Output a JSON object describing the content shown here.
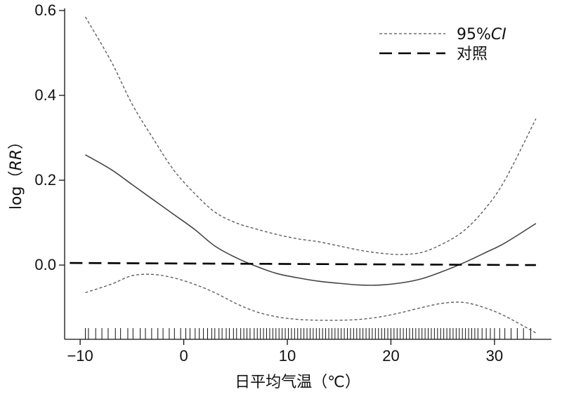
{
  "chart_data": {
    "type": "line",
    "xlabel": "日平均气温（℃）",
    "ylabel_prefix": "log（",
    "ylabel_italic": "RR",
    "ylabel_suffix": "）",
    "xlim": [
      -11.5,
      35.5
    ],
    "ylim": [
      -0.175,
      0.605
    ],
    "x_ticks": [
      -10,
      0,
      10,
      20,
      30
    ],
    "x_tick_labels": [
      "−10",
      "0",
      "10",
      "20",
      "30"
    ],
    "y_ticks": [
      0.0,
      0.2,
      0.4,
      0.6
    ],
    "y_tick_labels": [
      "0.0",
      "0.2",
      "0.4",
      "0.6"
    ],
    "grid": false,
    "legend_position": "top-right",
    "series": [
      {
        "role": "estimate",
        "style": "solid",
        "x": [
          -9.5,
          -7,
          -5,
          -3,
          -1,
          1,
          3,
          5,
          7,
          9,
          11,
          13,
          15,
          17,
          19,
          21,
          23,
          25,
          27,
          29,
          31,
          34
        ],
        "y": [
          0.26,
          0.225,
          0.19,
          0.155,
          0.12,
          0.085,
          0.045,
          0.018,
          -0.003,
          -0.02,
          -0.03,
          -0.038,
          -0.043,
          -0.047,
          -0.047,
          -0.042,
          -0.032,
          -0.015,
          0.005,
          0.028,
          0.052,
          0.098
        ]
      },
      {
        "name": "95%CI",
        "role": "ci-upper",
        "style": "dotted",
        "x": [
          -9.5,
          -7,
          -5,
          -3,
          -1,
          1,
          3,
          5,
          7,
          9,
          11,
          13,
          15,
          17,
          19,
          21,
          23,
          25,
          27,
          29,
          31,
          34
        ],
        "y": [
          0.585,
          0.48,
          0.38,
          0.3,
          0.225,
          0.17,
          0.125,
          0.1,
          0.085,
          0.072,
          0.062,
          0.055,
          0.045,
          0.035,
          0.028,
          0.025,
          0.03,
          0.05,
          0.08,
          0.13,
          0.2,
          0.345
        ]
      },
      {
        "role": "ci-lower",
        "style": "dotted",
        "x": [
          -9.5,
          -7,
          -5,
          -3,
          -1,
          1,
          3,
          5,
          7,
          9,
          11,
          13,
          15,
          17,
          19,
          21,
          23,
          25,
          27,
          29,
          31,
          34
        ],
        "y": [
          -0.065,
          -0.045,
          -0.025,
          -0.022,
          -0.03,
          -0.045,
          -0.065,
          -0.09,
          -0.11,
          -0.122,
          -0.128,
          -0.13,
          -0.13,
          -0.128,
          -0.122,
          -0.112,
          -0.1,
          -0.09,
          -0.088,
          -0.1,
          -0.12,
          -0.16
        ]
      },
      {
        "name": "对照",
        "role": "reference",
        "style": "dashed",
        "x": [
          -11,
          34
        ],
        "y": [
          0.005,
          0.0
        ]
      }
    ],
    "legend": [
      {
        "label_prefix": "95%",
        "label_italic": "CI",
        "style": "dotted"
      },
      {
        "label_prefix": "对照",
        "label_italic": "",
        "style": "dashed"
      }
    ],
    "rug_x": [
      -9.5,
      -9.2,
      -8.5,
      -7.9,
      -7.3,
      -6.6,
      -6.1,
      -5.4,
      -4.9,
      -4.2,
      -3.7,
      -3.1,
      -2.5,
      -2.0,
      -1.4,
      -0.9,
      -0.3,
      0.2,
      0.6,
      1.1,
      1.5,
      1.9,
      2.3,
      2.7,
      3.0,
      3.4,
      3.7,
      4.1,
      4.4,
      4.8,
      5.1,
      5.5,
      5.8,
      6.1,
      6.4,
      6.8,
      7.1,
      7.4,
      7.7,
      8.0,
      8.3,
      8.6,
      8.9,
      9.2,
      9.5,
      9.8,
      10.1,
      10.4,
      10.7,
      11.0,
      11.3,
      11.6,
      11.9,
      12.2,
      12.5,
      12.8,
      13.1,
      13.4,
      13.7,
      14.0,
      14.3,
      14.6,
      14.9,
      15.2,
      15.5,
      15.8,
      16.1,
      16.4,
      16.7,
      17.0,
      17.3,
      17.6,
      17.9,
      18.2,
      18.5,
      18.8,
      19.1,
      19.4,
      19.7,
      20.0,
      20.3,
      20.6,
      20.9,
      21.2,
      21.5,
      21.8,
      22.1,
      22.4,
      22.7,
      23.0,
      23.3,
      23.6,
      23.9,
      24.2,
      24.5,
      24.8,
      25.1,
      25.4,
      25.7,
      26.0,
      26.3,
      26.6,
      26.9,
      27.2,
      27.5,
      27.8,
      28.1,
      28.4,
      28.8,
      29.2,
      29.6,
      30.0,
      30.5,
      31.0,
      31.6,
      32.2,
      32.8,
      33.5
    ]
  }
}
